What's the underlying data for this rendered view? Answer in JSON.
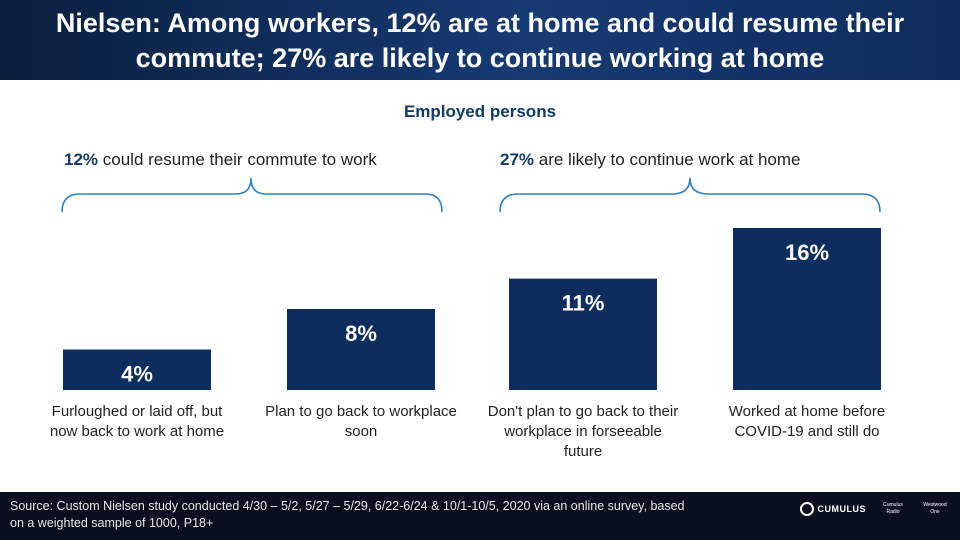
{
  "header": {
    "title": "Nielsen: Among workers, 12% are at home and could resume their commute; 27% are likely to continue working at home"
  },
  "chart_data": {
    "type": "bar",
    "title": "Employed persons",
    "categories": [
      "Furloughed or laid off, but now back to work at home",
      "Plan to go back to workplace soon",
      "Don't plan to go back to their workplace in forseeable future",
      "Worked at home before COVID-19 and still do"
    ],
    "values": [
      4,
      8,
      11,
      16
    ],
    "value_labels": [
      "4%",
      "8%",
      "11%",
      "16%"
    ],
    "ylim": [
      0,
      16
    ],
    "grid": false,
    "bar_color": "#0d2d5e",
    "groups": [
      {
        "pct": "12%",
        "text": " could resume their commute to work"
      },
      {
        "pct": "27%",
        "text": " are likely to continue work at home"
      }
    ]
  },
  "footer": {
    "source": "Source: Custom Nielsen study conducted 4/30 – 5/2, 5/27 – 5/29, 6/22-6/24 & 10/1-10/5, 2020 via an online survey, based on a weighted sample of 1000, P18+",
    "logos": {
      "main": "CUMULUS",
      "small_1": "Cumulus Radio",
      "small_2": "Westwood One"
    }
  }
}
